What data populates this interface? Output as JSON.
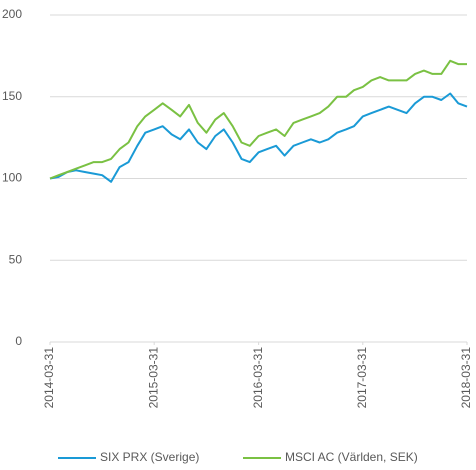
{
  "chart_data": {
    "type": "line",
    "x": [
      "2014-03-31",
      "2014-04-30",
      "2014-05-31",
      "2014-06-30",
      "2014-07-31",
      "2014-08-31",
      "2014-09-30",
      "2014-10-31",
      "2014-11-30",
      "2014-12-31",
      "2015-01-31",
      "2015-02-28",
      "2015-03-31",
      "2015-04-30",
      "2015-05-31",
      "2015-06-30",
      "2015-07-31",
      "2015-08-31",
      "2015-09-30",
      "2015-10-31",
      "2015-11-30",
      "2015-12-31",
      "2016-01-31",
      "2016-02-29",
      "2016-03-31",
      "2016-04-30",
      "2016-05-31",
      "2016-06-30",
      "2016-07-31",
      "2016-08-31",
      "2016-09-30",
      "2016-10-31",
      "2016-11-30",
      "2016-12-31",
      "2017-01-31",
      "2017-02-28",
      "2017-03-31",
      "2017-04-30",
      "2017-05-31",
      "2017-06-30",
      "2017-07-31",
      "2017-08-31",
      "2017-09-30",
      "2017-10-31",
      "2017-11-30",
      "2017-12-31",
      "2018-01-31",
      "2018-02-28",
      "2018-03-31"
    ],
    "series": [
      {
        "name": "SIX PRX (Sverige)",
        "color": "#1a9ad6",
        "values": [
          100,
          101,
          104,
          105,
          104,
          103,
          102,
          98,
          107,
          110,
          120,
          128,
          130,
          132,
          127,
          124,
          130,
          122,
          118,
          126,
          130,
          122,
          112,
          110,
          116,
          118,
          120,
          114,
          120,
          122,
          124,
          122,
          124,
          128,
          130,
          132,
          138,
          140,
          142,
          144,
          142,
          140,
          146,
          150,
          150,
          148,
          152,
          146,
          144
        ]
      },
      {
        "name": "MSCI AC (Världen, SEK)",
        "color": "#7ac143",
        "values": [
          100,
          102,
          104,
          106,
          108,
          110,
          110,
          112,
          118,
          122,
          132,
          138,
          142,
          146,
          142,
          138,
          145,
          134,
          128,
          136,
          140,
          132,
          122,
          120,
          126,
          128,
          130,
          126,
          134,
          136,
          138,
          140,
          144,
          150,
          150,
          154,
          156,
          160,
          162,
          160,
          160,
          160,
          164,
          166,
          164,
          164,
          172,
          170,
          170
        ]
      }
    ],
    "xlim": [
      "2014-03-31",
      "2018-03-31"
    ],
    "xticks": [
      "2014-03-31",
      "2015-03-31",
      "2016-03-31",
      "2017-03-31",
      "2018-03-31"
    ],
    "ylim": [
      0,
      200
    ],
    "yticks": [
      0,
      50,
      100,
      150,
      200
    ],
    "grid": true,
    "legend": "bottom"
  }
}
